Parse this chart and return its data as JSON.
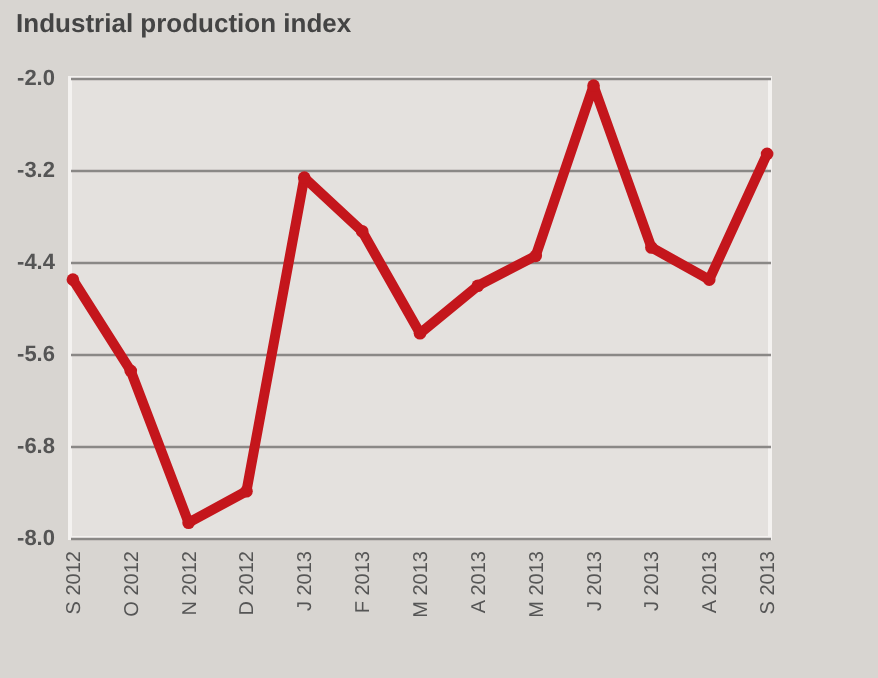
{
  "chart_data": {
    "type": "line",
    "title": "Industrial production index",
    "categories": [
      "S 2012",
      "O 2012",
      "N 2012",
      "D 2012",
      "J 2013",
      "F 2013",
      "M 2013",
      "A 2013",
      "M 2013",
      "J 2013",
      "J 2013",
      "A 2013",
      "S 2013"
    ],
    "series": [
      {
        "color": "#c4161c",
        "values": [
          -4.63,
          -5.82,
          -7.8,
          -7.39,
          -3.3,
          -4.0,
          -5.33,
          -4.71,
          -4.32,
          -2.1,
          -4.21,
          -4.63,
          -2.99
        ]
      }
    ],
    "ylim": [
      -8.0,
      -2.0
    ],
    "yticks": [
      {
        "value": -8.0,
        "label": "-8.0"
      },
      {
        "value": -6.8,
        "label": "-6.8"
      },
      {
        "value": -5.6,
        "label": "-5.6"
      },
      {
        "value": -4.4,
        "label": "-4.4"
      },
      {
        "value": -3.2,
        "label": "-3.2"
      },
      {
        "value": -2.0,
        "label": "-2.0"
      }
    ],
    "grid": "y",
    "marker": "circle",
    "legend": false
  }
}
